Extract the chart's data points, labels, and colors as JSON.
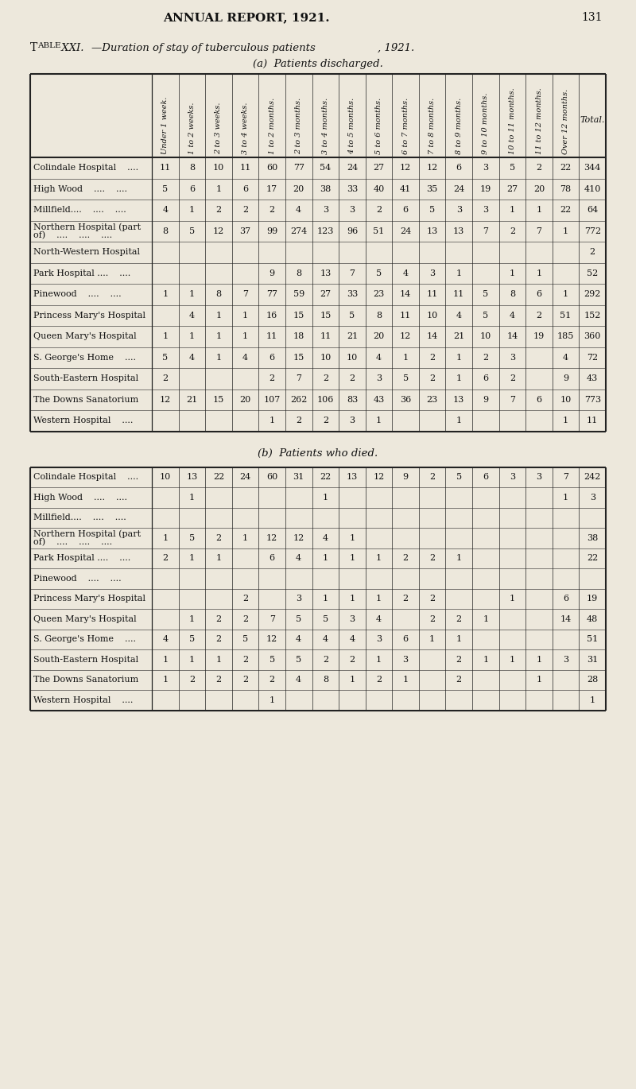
{
  "page_header": "ANNUAL REPORT, 1921.",
  "page_number": "131",
  "table_title_pre": "T",
  "table_title_pre2": "ABLE",
  "table_title_mid": "XXI.",
  "table_title_rest": "—Duration of stay of tuberculous patients, 1921.",
  "section_a_title": "(a)  Patients discharged.",
  "section_b_title": "(b)  Patients who died.",
  "col_headers": [
    "Under 1 week.",
    "1 to 2 weeks.",
    "2 to 3 weeks.",
    "3 to 4 weeks.",
    "1 to 2 months.",
    "2 to 3 months.",
    "3 to 4 months.",
    "4 to 5 months.",
    "5 to 6 months.",
    "6 to 7 months.",
    "7 to 8 months.",
    "8 to 9 months.",
    "9 to 10 months.",
    "10 to 11 months.",
    "11 to 12 months.",
    "Over 12 months.",
    "Total."
  ],
  "row_labels_a": [
    "Colindale Hospital    ....",
    "High Wood    ....    ....",
    "Millfield....    ....    ....",
    "Northern Hospital (part\nof)    ....    ....    ....",
    "North-Western Hospital",
    "Park Hospital ....    ....",
    "Pinewood    ....    ....",
    "Princess Mary's Hospital",
    "Queen Mary's Hospital",
    "S. George's Home    ....",
    "South-Eastern Hospital",
    "The Downs Sanatorium",
    "Western Hospital    ...."
  ],
  "data_a": [
    [
      11,
      8,
      10,
      11,
      60,
      77,
      54,
      24,
      27,
      12,
      12,
      6,
      3,
      5,
      2,
      22,
      344
    ],
    [
      5,
      6,
      1,
      6,
      17,
      20,
      38,
      33,
      40,
      41,
      35,
      24,
      19,
      27,
      20,
      78,
      410
    ],
    [
      4,
      1,
      2,
      2,
      2,
      4,
      3,
      3,
      2,
      6,
      5,
      3,
      3,
      1,
      1,
      22,
      64
    ],
    [
      8,
      5,
      12,
      37,
      99,
      274,
      123,
      96,
      51,
      24,
      13,
      13,
      7,
      2,
      7,
      1,
      772
    ],
    [
      "",
      "",
      "",
      "",
      "",
      "",
      "",
      "",
      "",
      "",
      "",
      "",
      "",
      "",
      "",
      "",
      2
    ],
    [
      "",
      "",
      "",
      "",
      9,
      8,
      13,
      7,
      5,
      4,
      3,
      1,
      "",
      1,
      1,
      "",
      52
    ],
    [
      1,
      1,
      8,
      7,
      77,
      59,
      27,
      33,
      23,
      14,
      11,
      11,
      5,
      8,
      6,
      1,
      292
    ],
    [
      "",
      4,
      1,
      1,
      16,
      15,
      15,
      5,
      8,
      11,
      10,
      4,
      5,
      4,
      2,
      51,
      152
    ],
    [
      1,
      1,
      1,
      1,
      11,
      18,
      11,
      21,
      20,
      12,
      14,
      21,
      10,
      14,
      19,
      185,
      360
    ],
    [
      5,
      4,
      1,
      4,
      6,
      15,
      10,
      10,
      4,
      1,
      2,
      1,
      2,
      3,
      "",
      4,
      72
    ],
    [
      2,
      "",
      "",
      "",
      2,
      7,
      2,
      2,
      3,
      5,
      2,
      1,
      6,
      2,
      "",
      9,
      43
    ],
    [
      12,
      21,
      15,
      20,
      107,
      262,
      106,
      83,
      43,
      36,
      23,
      13,
      9,
      7,
      6,
      10,
      773
    ],
    [
      "",
      "",
      "",
      "",
      1,
      2,
      2,
      3,
      1,
      "",
      "",
      1,
      "",
      "",
      "",
      1,
      11
    ]
  ],
  "row_labels_b": [
    "Colindale Hospital    ....",
    "High Wood    ....    ....",
    "Millfield....    ....    ....",
    "Northern Hospital (part\nof)    ....    ....    ....",
    "Park Hospital ....    ....",
    "Pinewood    ....    ....",
    "Princess Mary's Hospital",
    "Queen Mary's Hospital",
    "S. George's Home    ....",
    "South-Eastern Hospital",
    "The Downs Sanatorium",
    "Western Hospital    ...."
  ],
  "data_b": [
    [
      10,
      13,
      22,
      24,
      60,
      31,
      22,
      13,
      12,
      9,
      2,
      5,
      6,
      3,
      3,
      7,
      242
    ],
    [
      "",
      1,
      "",
      "",
      "",
      "",
      1,
      "",
      "",
      "",
      "",
      "",
      "",
      "",
      "",
      1,
      3
    ],
    [
      "",
      "",
      "",
      "",
      "",
      "",
      "",
      "",
      "",
      "",
      "",
      "",
      "",
      "",
      "",
      "",
      ""
    ],
    [
      1,
      5,
      2,
      1,
      12,
      12,
      4,
      1,
      "",
      "",
      "",
      "",
      "",
      "",
      "",
      "",
      38
    ],
    [
      2,
      1,
      1,
      "",
      6,
      4,
      1,
      1,
      1,
      2,
      2,
      1,
      "",
      "",
      "",
      "",
      22
    ],
    [
      "",
      "",
      "",
      "",
      "",
      "",
      "",
      "",
      "",
      "",
      "",
      "",
      "",
      "",
      "",
      "",
      ""
    ],
    [
      "",
      "",
      "",
      2,
      "",
      3,
      1,
      1,
      1,
      2,
      2,
      "",
      "",
      1,
      "",
      6,
      19
    ],
    [
      "",
      1,
      2,
      2,
      7,
      5,
      5,
      3,
      4,
      "",
      2,
      2,
      1,
      "",
      "",
      14,
      48
    ],
    [
      4,
      5,
      2,
      5,
      12,
      4,
      4,
      4,
      3,
      6,
      1,
      1,
      "",
      "",
      "",
      "",
      51
    ],
    [
      1,
      1,
      1,
      2,
      5,
      5,
      2,
      2,
      1,
      3,
      "",
      2,
      1,
      1,
      1,
      3,
      31
    ],
    [
      1,
      2,
      2,
      2,
      2,
      4,
      8,
      1,
      2,
      1,
      "",
      2,
      "",
      "",
      1,
      "",
      28
    ],
    [
      "",
      "",
      "",
      "",
      1,
      "",
      "",
      "",
      "",
      "",
      "",
      "",
      "",
      "",
      "",
      "",
      1
    ]
  ],
  "bg_color": "#ede8dc",
  "text_color": "#111111",
  "line_color": "#222222"
}
